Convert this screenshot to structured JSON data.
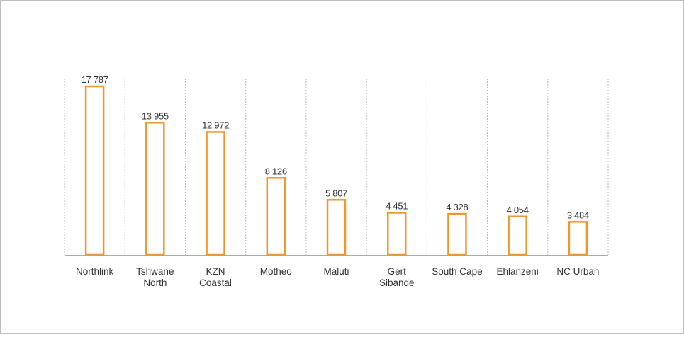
{
  "chart_data": {
    "type": "bar",
    "categories": [
      [
        "Northlink"
      ],
      [
        "Tshwane",
        "North"
      ],
      [
        "KZN",
        "Coastal"
      ],
      [
        "Motheo"
      ],
      [
        "Maluti"
      ],
      [
        "Gert",
        "Sibande"
      ],
      [
        "South Cape"
      ],
      [
        "Ehlanzeni"
      ],
      [
        "NC Urban"
      ]
    ],
    "values": [
      17787,
      13955,
      12972,
      8126,
      5807,
      4451,
      4328,
      4054,
      3484
    ],
    "value_labels": [
      "17 787",
      "13 955",
      "12 972",
      "8 126",
      "5 807",
      "4 451",
      "4 328",
      "4 054",
      "3 484"
    ],
    "title": "",
    "xlabel": "",
    "ylabel": "",
    "ylim": [
      0,
      17787
    ],
    "grid": "vertical-dotted",
    "legend": "none",
    "colors": {
      "bar_stroke": "#f0962a",
      "bar_fill": "#ffffff",
      "grid": "#b5b5b5",
      "axis": "#aaaaaa",
      "text": "#333333"
    }
  }
}
